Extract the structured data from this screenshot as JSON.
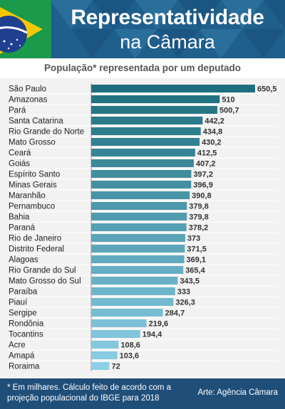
{
  "header": {
    "title_line1": "Representatividade",
    "title_line2": "na Câmara"
  },
  "chart_data": {
    "type": "bar",
    "orientation": "horizontal",
    "title": "População* representada por um deputado",
    "categories": [
      "São Paulo",
      "Amazonas",
      "Pará",
      "Santa Catarina",
      "Rio Grande do Norte",
      "Mato Grosso",
      "Ceará",
      "Goiás",
      "Espírito Santo",
      "Minas Gerais",
      "Maranhão",
      "Pernambuco",
      "Bahia",
      "Paraná",
      "Rio de Janeiro",
      "Distrito Federal",
      "Alagoas",
      "Rio Grande do Sul",
      "Mato Grosso do Sul",
      "Paraíba",
      "Piauí",
      "Sergipe",
      "Rondônia",
      "Tocantins",
      "Acre",
      "Amapá",
      "Roraima"
    ],
    "values": [
      650.5,
      510,
      500.7,
      442.2,
      434.8,
      430.2,
      412.5,
      407.2,
      397.2,
      396.9,
      390.8,
      379.8,
      379.8,
      378.2,
      373,
      371.5,
      369.1,
      365.4,
      343.5,
      333,
      326.3,
      284.7,
      219.6,
      194.4,
      108.6,
      103.6,
      72
    ],
    "value_labels": [
      "650,5",
      "510",
      "500,7",
      "442,2",
      "434,8",
      "430,2",
      "412,5",
      "407,2",
      "397,2",
      "396,9",
      "390,8",
      "379,8",
      "379,8",
      "378,2",
      "373",
      "371,5",
      "369,1",
      "365,4",
      "343,5",
      "333",
      "326,3",
      "284,7",
      "219,6",
      "194,4",
      "108,6",
      "103,6",
      "72"
    ],
    "xlim": [
      0,
      650.5
    ],
    "bar_color_start": "#1e6f7e",
    "bar_color_end": "#8ccfe6",
    "grid": false,
    "legend": "none"
  },
  "footer": {
    "footnote": "* Em milhares.  Cálculo feito de acordo com a projeção populacional do IBGE para 2018",
    "credit": "Arte: Agência Câmara"
  },
  "colors": {
    "header_bg": "#1f5f8c",
    "footer_bg": "#1f4e79",
    "brazil_green": "#1a9a4a",
    "brazil_yellow": "#f5c800",
    "brazil_blue": "#1f3f8f"
  }
}
